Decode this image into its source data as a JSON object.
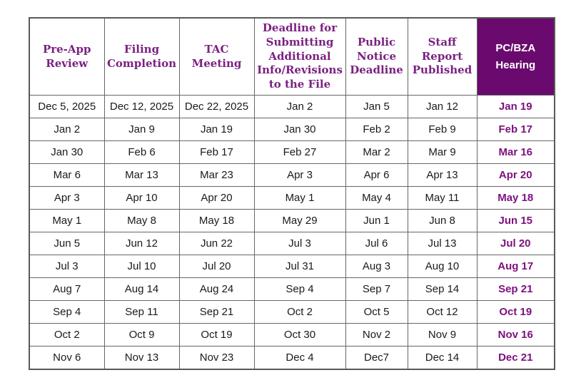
{
  "colors": {
    "header_text": "#7b2182",
    "hearing_header_bg": "#6a0a6e",
    "hearing_header_text": "#ffffff",
    "hearing_value_text": "#7d107f",
    "body_text": "#1a1a1a",
    "grid_border": "#666666",
    "outer_border": "#595959",
    "page_bg": "#ffffff"
  },
  "table": {
    "headers": [
      "Pre-App\nReview",
      "Filing\nCompletion",
      "TAC\nMeeting",
      "Deadline for\nSubmitting\nAdditional\nInfo/Revisions\nto the File",
      "Public\nNotice\nDeadline",
      "Staff\nReport\nPublished",
      "PC/BZA\nHearing"
    ],
    "rows": [
      [
        "Dec 5, 2025",
        "Dec 12, 2025",
        "Dec 22, 2025",
        "Jan 2",
        "Jan 5",
        "Jan 12",
        "Jan 19"
      ],
      [
        "Jan 2",
        "Jan 9",
        "Jan 19",
        "Jan 30",
        "Feb 2",
        "Feb 9",
        "Feb 17"
      ],
      [
        "Jan 30",
        "Feb 6",
        "Feb 17",
        "Feb 27",
        "Mar 2",
        "Mar 9",
        "Mar 16"
      ],
      [
        "Mar 6",
        "Mar 13",
        "Mar 23",
        "Apr 3",
        "Apr 6",
        "Apr 13",
        "Apr 20"
      ],
      [
        "Apr 3",
        "Apr 10",
        "Apr 20",
        "May 1",
        "May 4",
        "May 11",
        "May 18"
      ],
      [
        "May 1",
        "May 8",
        "May 18",
        "May 29",
        "Jun 1",
        "Jun 8",
        "Jun 15"
      ],
      [
        "Jun 5",
        "Jun 12",
        "Jun 22",
        "Jul 3",
        "Jul 6",
        "Jul 13",
        "Jul 20"
      ],
      [
        "Jul 3",
        "Jul 10",
        "Jul 20",
        "Jul 31",
        "Aug 3",
        "Aug 10",
        "Aug 17"
      ],
      [
        "Aug 7",
        "Aug 14",
        "Aug 24",
        "Sep 4",
        "Sep 7",
        "Sep 14",
        "Sep 21"
      ],
      [
        "Sep 4",
        "Sep 11",
        "Sep 21",
        "Oct 2",
        "Oct 5",
        "Oct 12",
        "Oct 19"
      ],
      [
        "Oct 2",
        "Oct 9",
        "Oct 19",
        "Oct 30",
        "Nov 2",
        "Nov 9",
        "Nov 16"
      ],
      [
        "Nov 6",
        "Nov 13",
        "Nov 23",
        "Dec 4",
        "Dec7",
        "Dec 14",
        "Dec 21"
      ]
    ]
  }
}
